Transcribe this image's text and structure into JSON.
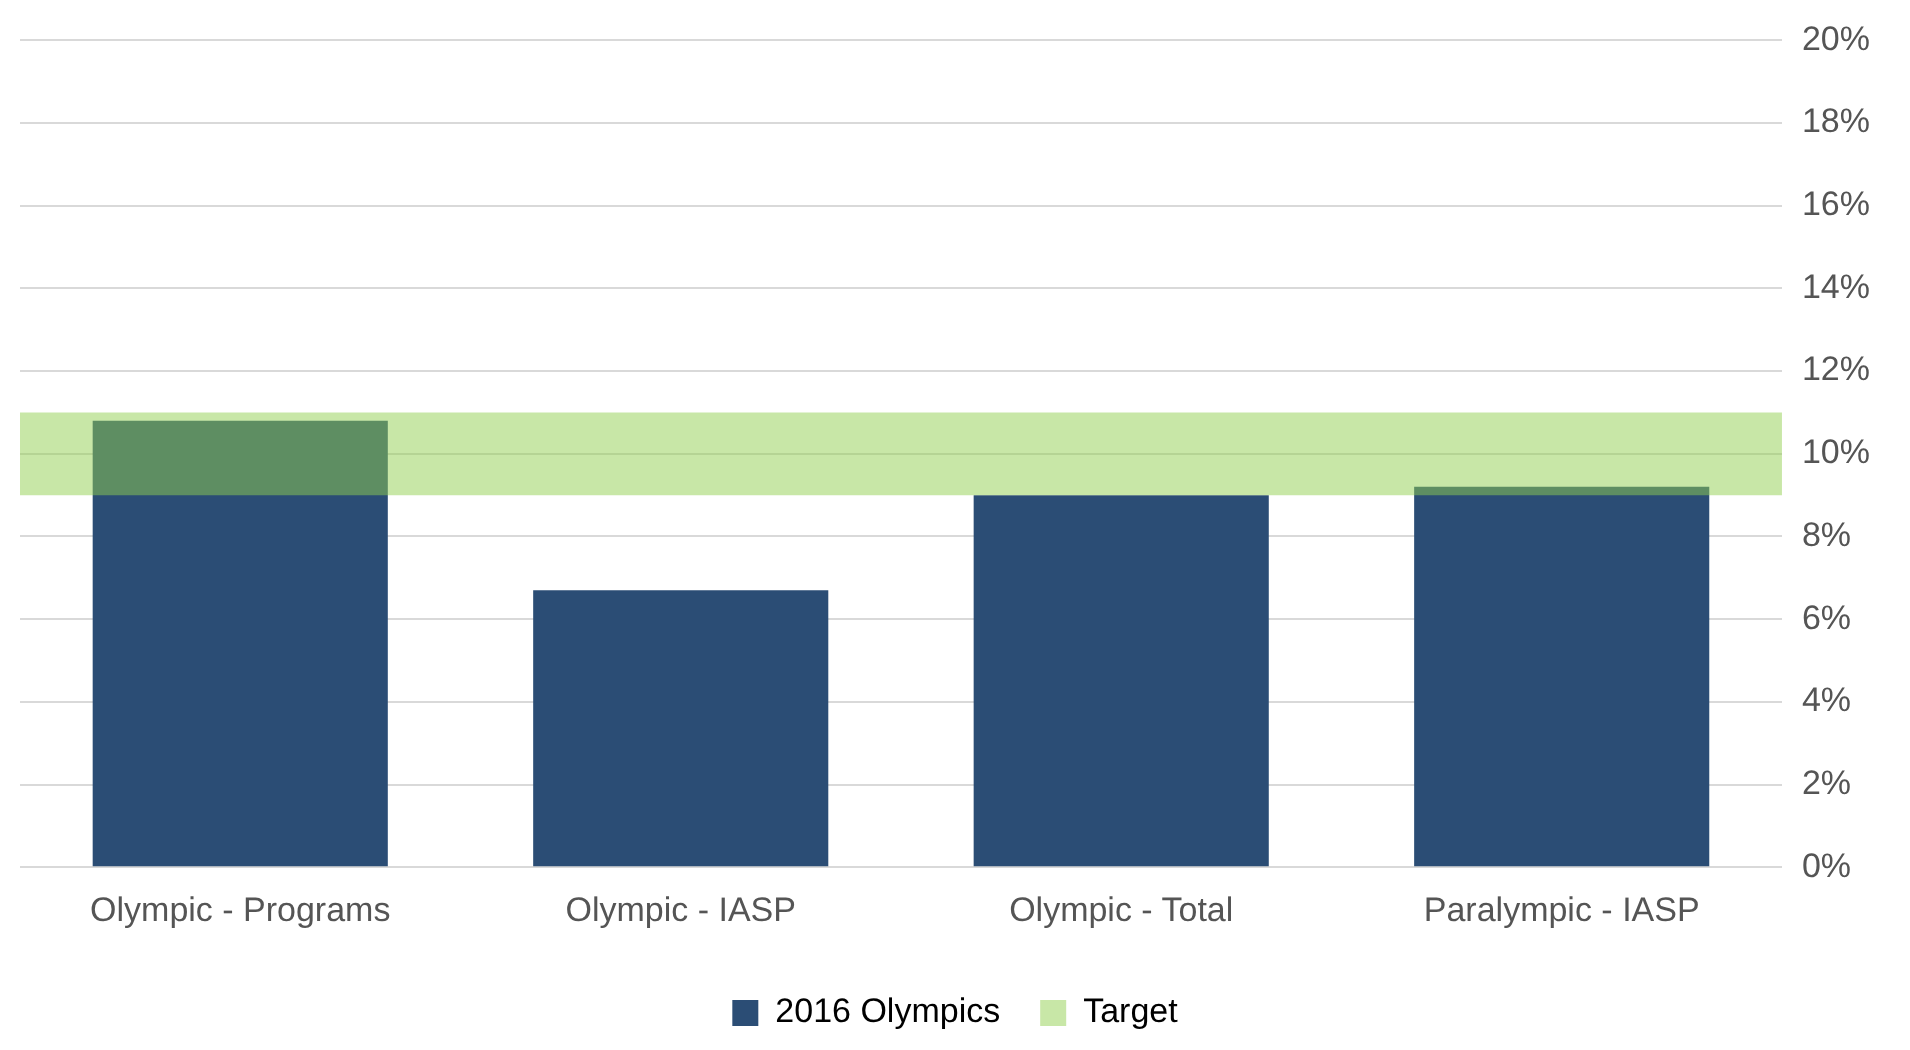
{
  "chart_data": {
    "type": "bar",
    "categories": [
      "Olympic - Programs",
      "Olympic - IASP",
      "Olympic - Total",
      "Paralympic - IASP"
    ],
    "series": [
      {
        "name": "2016 Olympics",
        "color": "#2b4d75",
        "values": [
          10.8,
          6.7,
          9.0,
          9.2
        ]
      }
    ],
    "ylim": [
      0,
      20
    ],
    "yticks": [
      {
        "value": 0,
        "label": "0%"
      },
      {
        "value": 2,
        "label": "2%"
      },
      {
        "value": 4,
        "label": "4%"
      },
      {
        "value": 6,
        "label": "6%"
      },
      {
        "value": 8,
        "label": "8%"
      },
      {
        "value": 10,
        "label": "10%"
      },
      {
        "value": 12,
        "label": "12%"
      },
      {
        "value": 14,
        "label": "14%"
      },
      {
        "value": 16,
        "label": "16%"
      },
      {
        "value": 18,
        "label": "18%"
      },
      {
        "value": 20,
        "label": "20%"
      }
    ],
    "bands": [
      {
        "axis": "y",
        "from": 9,
        "to": 11,
        "label": "Target",
        "color": "#92d050"
      }
    ],
    "grid": "y",
    "legend": "bottom"
  }
}
